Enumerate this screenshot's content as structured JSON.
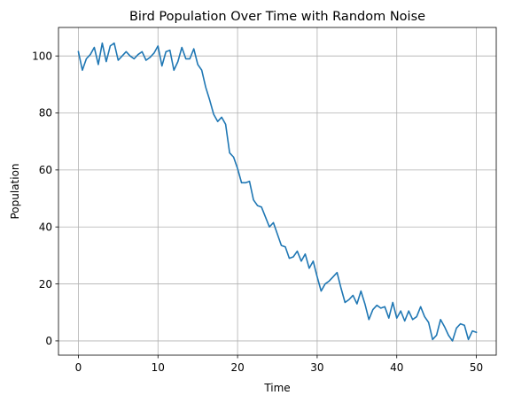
{
  "chart_data": {
    "type": "line",
    "title": "Bird Population Over Time with Random Noise",
    "xlabel": "Time",
    "ylabel": "Population",
    "xlim": [
      -2.5,
      52.5
    ],
    "ylim": [
      -5,
      110
    ],
    "xticks": [
      0,
      10,
      20,
      30,
      40,
      50
    ],
    "yticks": [
      0,
      20,
      40,
      60,
      80,
      100
    ],
    "grid": true,
    "line_color": "#1f77b4",
    "series": [
      {
        "x": [
          0.0,
          0.5,
          1.0,
          1.5,
          2.0,
          2.5,
          3.0,
          3.5,
          4.0,
          4.5,
          5.0,
          5.5,
          6.0,
          6.5,
          7.0,
          7.5,
          8.0,
          8.5,
          9.0,
          9.5,
          10.0,
          10.5,
          11.0,
          11.5,
          12.0,
          12.5,
          13.0,
          13.5,
          14.0,
          14.5,
          15.0,
          15.5,
          16.0,
          16.5,
          17.0,
          17.5,
          18.0,
          18.5,
          19.0,
          19.5,
          20.0,
          20.5,
          21.0,
          21.5,
          22.0,
          22.5,
          23.0,
          23.5,
          24.0,
          24.5,
          25.0,
          25.5,
          26.0,
          26.5,
          27.0,
          27.5,
          28.0,
          28.5,
          29.0,
          29.5,
          30.0,
          30.5,
          31.0,
          31.5,
          32.0,
          32.5,
          33.0,
          33.5,
          34.0,
          34.5,
          35.0,
          35.5,
          36.0,
          36.5,
          37.0,
          37.5,
          38.0,
          38.5,
          39.0,
          39.5,
          40.0,
          40.5,
          41.0,
          41.5,
          42.0,
          42.5,
          43.0,
          43.5,
          44.0,
          44.5,
          45.0,
          45.5,
          46.0,
          46.5,
          47.0,
          47.5,
          48.0,
          48.5,
          49.0,
          49.5,
          50.0
        ],
        "values": [
          101.5,
          95.0,
          99.0,
          100.5,
          103.0,
          97.0,
          104.5,
          98.0,
          103.5,
          104.5,
          98.5,
          100.0,
          101.5,
          100.0,
          99.0,
          100.5,
          101.5,
          98.5,
          99.5,
          101.0,
          103.5,
          96.5,
          101.5,
          102.0,
          95.0,
          98.0,
          103.0,
          99.0,
          99.0,
          102.5,
          97.0,
          95.0,
          89.0,
          84.5,
          79.5,
          77.0,
          78.5,
          76.0,
          66.0,
          64.5,
          60.5,
          55.5,
          55.5,
          56.0,
          49.5,
          47.5,
          47.0,
          43.5,
          40.0,
          41.5,
          37.5,
          33.5,
          33.0,
          29.0,
          29.5,
          31.5,
          28.0,
          30.5,
          25.5,
          28.0,
          22.5,
          17.5,
          20.0,
          21.0,
          22.5,
          24.0,
          18.5,
          13.5,
          14.5,
          16.0,
          13.0,
          17.5,
          13.0,
          7.5,
          11.0,
          12.5,
          11.5,
          12.0,
          8.0,
          13.5,
          8.0,
          10.5,
          7.0,
          10.5,
          7.5,
          8.5,
          12.0,
          8.5,
          6.5,
          0.5,
          2.0,
          7.5,
          5.0,
          2.0,
          0.0,
          4.5,
          6.0,
          5.5,
          0.5,
          3.5,
          3.0
        ]
      }
    ]
  }
}
